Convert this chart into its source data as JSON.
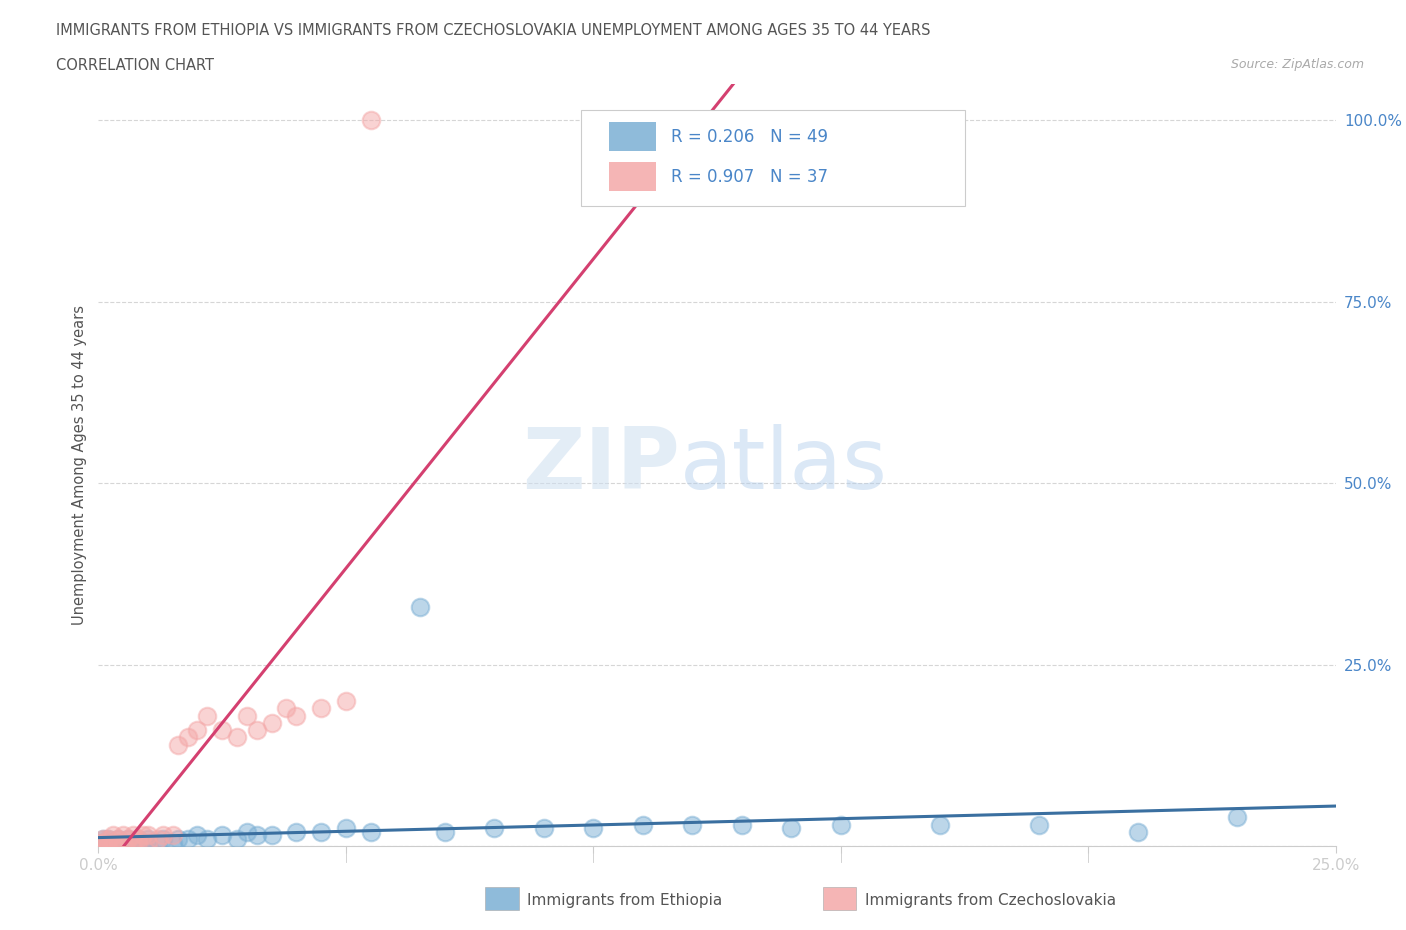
{
  "title_line1": "IMMIGRANTS FROM ETHIOPIA VS IMMIGRANTS FROM CZECHOSLOVAKIA UNEMPLOYMENT AMONG AGES 35 TO 44 YEARS",
  "title_line2": "CORRELATION CHART",
  "source_text": "Source: ZipAtlas.com",
  "ylabel": "Unemployment Among Ages 35 to 44 years",
  "watermark_zip": "ZIP",
  "watermark_atlas": "atlas",
  "legend_ethiopia_label": "Immigrants from Ethiopia",
  "legend_czech_label": "Immigrants from Czechoslovakia",
  "ethiopia_R": "R = 0.206",
  "ethiopia_N": "N = 49",
  "czech_R": "R = 0.907",
  "czech_N": "N = 37",
  "ethiopia_color": "#7bafd4",
  "czech_color": "#f4a8a8",
  "ethiopia_line_color": "#3a6fa0",
  "czech_line_color": "#d44070",
  "background_color": "#ffffff",
  "grid_color": "#cccccc",
  "title_color": "#555555",
  "axis_label_color": "#4a86c8",
  "legend_R_color": "#4a86c8",
  "xmin": 0.0,
  "xmax": 0.25,
  "ymin": 0.0,
  "ymax": 1.05,
  "eth_x": [
    0.0,
    0.0,
    0.001,
    0.001,
    0.002,
    0.002,
    0.003,
    0.003,
    0.004,
    0.005,
    0.005,
    0.006,
    0.006,
    0.007,
    0.008,
    0.008,
    0.009,
    0.01,
    0.01,
    0.012,
    0.013,
    0.015,
    0.016,
    0.018,
    0.02,
    0.022,
    0.025,
    0.028,
    0.03,
    0.032,
    0.035,
    0.04,
    0.045,
    0.05,
    0.055,
    0.065,
    0.07,
    0.08,
    0.09,
    0.1,
    0.11,
    0.12,
    0.13,
    0.14,
    0.15,
    0.17,
    0.19,
    0.21,
    0.23
  ],
  "eth_y": [
    0.0,
    0.005,
    0.0,
    0.01,
    0.005,
    0.01,
    0.0,
    0.005,
    0.01,
    0.0,
    0.005,
    0.0,
    0.01,
    0.005,
    0.0,
    0.01,
    0.005,
    0.0,
    0.01,
    0.005,
    0.01,
    0.005,
    0.01,
    0.01,
    0.015,
    0.01,
    0.015,
    0.01,
    0.02,
    0.015,
    0.015,
    0.02,
    0.02,
    0.025,
    0.02,
    0.33,
    0.02,
    0.025,
    0.025,
    0.025,
    0.03,
    0.03,
    0.03,
    0.025,
    0.03,
    0.03,
    0.03,
    0.02,
    0.04
  ],
  "czech_x": [
    0.0,
    0.0,
    0.001,
    0.001,
    0.002,
    0.002,
    0.003,
    0.003,
    0.004,
    0.004,
    0.005,
    0.005,
    0.006,
    0.007,
    0.007,
    0.008,
    0.008,
    0.009,
    0.01,
    0.01,
    0.012,
    0.013,
    0.015,
    0.016,
    0.018,
    0.02,
    0.022,
    0.025,
    0.028,
    0.03,
    0.032,
    0.035,
    0.038,
    0.04,
    0.045,
    0.05,
    0.055
  ],
  "czech_y": [
    0.0,
    0.005,
    0.005,
    0.01,
    0.0,
    0.01,
    0.005,
    0.015,
    0.005,
    0.01,
    0.005,
    0.015,
    0.01,
    0.005,
    0.015,
    0.005,
    0.01,
    0.015,
    0.005,
    0.015,
    0.01,
    0.015,
    0.015,
    0.14,
    0.15,
    0.16,
    0.18,
    0.16,
    0.15,
    0.18,
    0.16,
    0.17,
    0.19,
    0.18,
    0.19,
    0.2,
    1.0
  ]
}
